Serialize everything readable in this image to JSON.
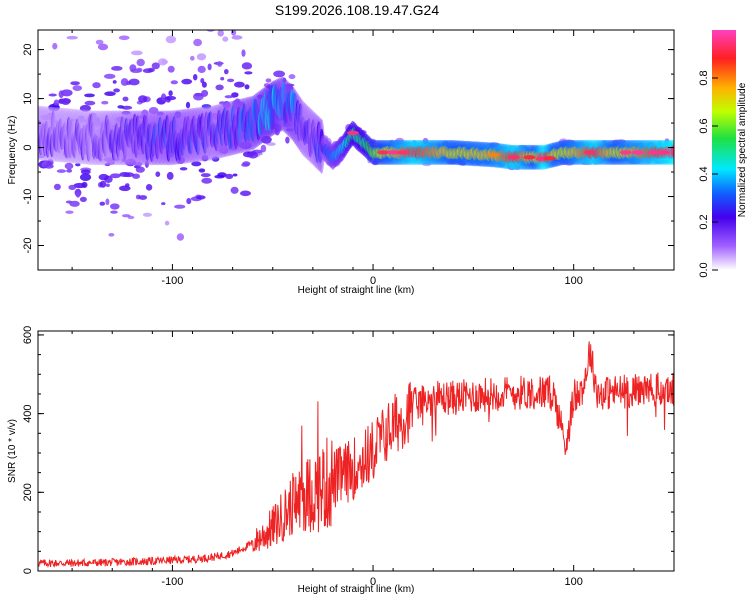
{
  "title": "S199.2026.108.19.47.G24",
  "chart_data": [
    {
      "type": "heatmap",
      "title": "S199.2026.108.19.47.G24",
      "xlabel": "Height of straight line (km)",
      "ylabel": "Frequency (Hz)",
      "xlim": [
        -167,
        150
      ],
      "ylim": [
        -25,
        24
      ],
      "xticks": [
        -100,
        0,
        100
      ],
      "yticks": [
        -20,
        -10,
        0,
        10,
        20
      ],
      "colorbar": {
        "label": "Normalized spectral amplitude",
        "range": [
          0,
          1
        ],
        "ticks": [
          0.0,
          0.2,
          0.4,
          0.6,
          0.8
        ]
      },
      "ridge": {
        "x": [
          -167,
          -140,
          -120,
          -100,
          -80,
          -60,
          -50,
          -45,
          -40,
          -35,
          -30,
          -25,
          -20,
          -15,
          -12,
          -10,
          -8,
          -5,
          0,
          20,
          40,
          60,
          70,
          80,
          85,
          90,
          95,
          100,
          110,
          120,
          150
        ],
        "freq": [
          3,
          2,
          2,
          2,
          3,
          5,
          8,
          9,
          7,
          4,
          2,
          0,
          -2,
          0,
          2,
          3,
          2,
          1,
          -1,
          -1,
          -1,
          -1.5,
          -2,
          -2,
          -2,
          -1.5,
          -1,
          -1,
          -1,
          -1,
          -1
        ],
        "amplitude": [
          0.15,
          0.15,
          0.2,
          0.25,
          0.2,
          0.3,
          0.4,
          0.3,
          0.3,
          0.2,
          0.2,
          0.25,
          0.35,
          0.4,
          0.5,
          0.5,
          0.5,
          0.5,
          0.6,
          0.9,
          0.7,
          0.75,
          0.9,
          0.7,
          0.95,
          0.7,
          0.7,
          0.75,
          0.9,
          0.7,
          0.95
        ]
      }
    },
    {
      "type": "line",
      "xlabel": "Height of straight line (km)",
      "ylabel": "SNR (10 * v/v)",
      "xlim": [
        -167,
        150
      ],
      "ylim": [
        0,
        610
      ],
      "xticks": [
        -100,
        0,
        100
      ],
      "yticks": [
        0,
        200,
        400,
        600
      ],
      "series": [
        {
          "name": "SNR",
          "color": "#ee2222",
          "x": [
            -167,
            -150,
            -130,
            -110,
            -90,
            -80,
            -70,
            -60,
            -50,
            -45,
            -40,
            -35,
            -30,
            -25,
            -20,
            -15,
            -10,
            -5,
            0,
            5,
            10,
            15,
            20,
            30,
            40,
            60,
            80,
            90,
            96,
            100,
            105,
            108,
            112,
            120,
            135,
            150
          ],
          "y": [
            20,
            20,
            22,
            25,
            30,
            35,
            45,
            70,
            110,
            140,
            170,
            190,
            200,
            215,
            230,
            245,
            260,
            280,
            310,
            340,
            370,
            390,
            420,
            440,
            440,
            450,
            455,
            450,
            320,
            440,
            470,
            560,
            450,
            455,
            460,
            460
          ]
        }
      ],
      "annotations": [
        {
          "x": -17,
          "y": 540,
          "text": ""
        }
      ]
    }
  ]
}
